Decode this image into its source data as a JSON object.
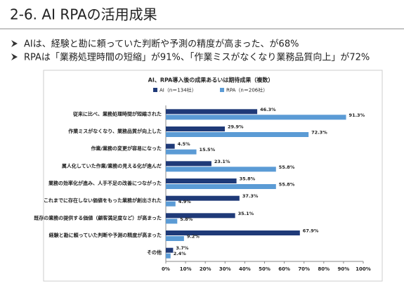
{
  "slide": {
    "title": "2-6. AI RPAの活用成果",
    "bullets": [
      "AIは、経験と勘に頼っていた判断や予測の精度が高まった、が68%",
      "RPAは「業務処理時間の短縮」が91%、「作業ミスがなくなり業務品質向上」が72%"
    ]
  },
  "chart_data": {
    "type": "bar",
    "orientation": "horizontal",
    "title": "AI、RPA導入後の成果あるいは期待成果（複数）",
    "categories": [
      "従来に比べ、業務処理時間が短縮された",
      "作業ミスがなくなり、業務品質が向上した",
      "作業/業務の変更が容易になった",
      "属人化していた作業/業務の見える化が進んだ",
      "業務の効率化が進み、人手不足の改善につながった",
      "これまでに存在しない価値をもった業務が創出された",
      "既存の業務の提供する価値（顧客満足度など）が高まった",
      "経験と勘に頼っていた判断や予測の精度が高まった",
      "その他"
    ],
    "series": [
      {
        "name": "AI（n＝134社）",
        "color": "#1f3a78",
        "values": [
          46.3,
          29.9,
          4.5,
          23.1,
          35.8,
          37.3,
          35.1,
          67.9,
          3.7
        ],
        "value_labels": [
          "46.3%",
          "29.9%",
          "4.5%",
          "23.1%",
          "35.8%",
          "37.3%",
          "35.1%",
          "67.9%",
          "3.7%"
        ]
      },
      {
        "name": "RPA（n＝206社）",
        "color": "#5b9bd5",
        "values": [
          91.3,
          72.3,
          15.5,
          55.8,
          55.8,
          4.9,
          5.8,
          9.2,
          2.4
        ],
        "value_labels": [
          "91.3%",
          "72.3%",
          "15.5%",
          "55.8%",
          "55.8%",
          "4.9%",
          "5.8%",
          "9.2%",
          "2.4%"
        ]
      }
    ],
    "xlim": [
      0,
      100
    ],
    "xticks": [
      {
        "value": 0,
        "label": "0%"
      },
      {
        "value": 10,
        "label": "10%"
      },
      {
        "value": 20,
        "label": "20%"
      },
      {
        "value": 30,
        "label": "30%"
      },
      {
        "value": 40,
        "label": "40%"
      },
      {
        "value": 50,
        "label": "50%"
      },
      {
        "value": 60,
        "label": "60%"
      },
      {
        "value": 70,
        "label": "70%"
      },
      {
        "value": 80,
        "label": "80%"
      },
      {
        "value": 90,
        "label": "90%"
      },
      {
        "value": 100,
        "label": "100%"
      }
    ],
    "legend": "top"
  }
}
